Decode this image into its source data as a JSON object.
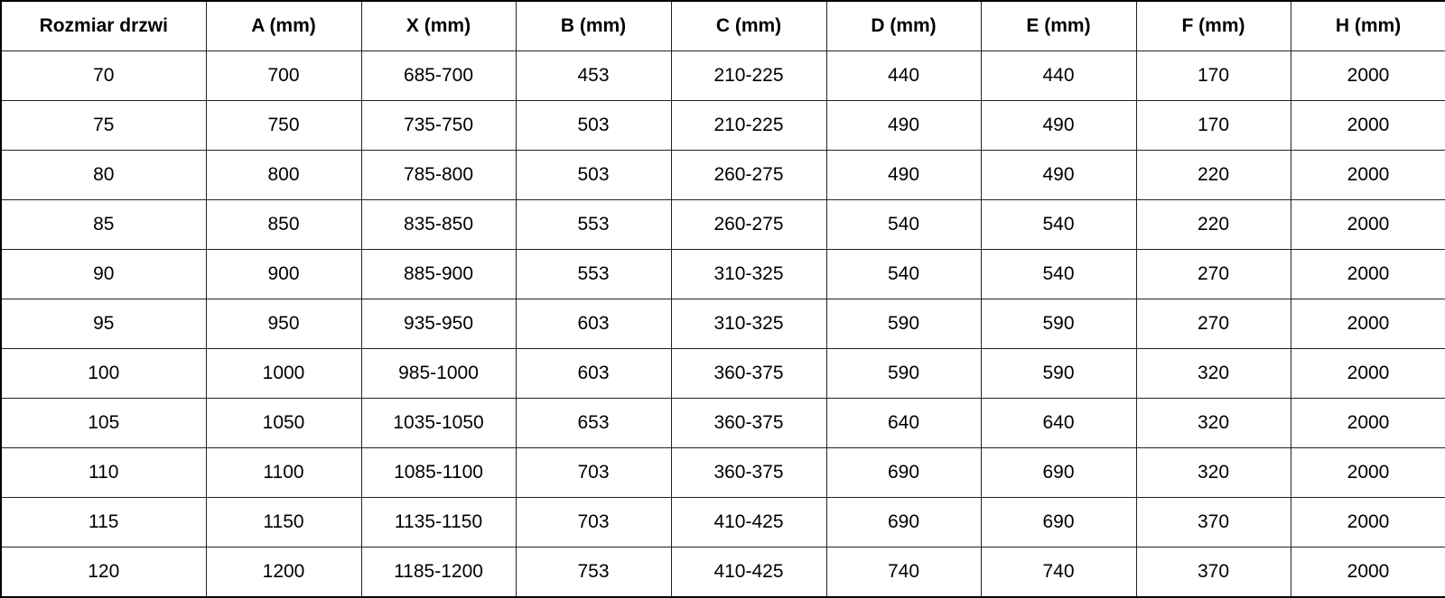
{
  "table": {
    "headers": [
      "Rozmiar drzwi",
      "A (mm)",
      "X (mm)",
      "B (mm)",
      "C (mm)",
      "D (mm)",
      "E (mm)",
      "F (mm)",
      "H (mm)"
    ],
    "rows": [
      [
        "70",
        "700",
        "685-700",
        "453",
        "210-225",
        "440",
        "440",
        "170",
        "2000"
      ],
      [
        "75",
        "750",
        "735-750",
        "503",
        "210-225",
        "490",
        "490",
        "170",
        "2000"
      ],
      [
        "80",
        "800",
        "785-800",
        "503",
        "260-275",
        "490",
        "490",
        "220",
        "2000"
      ],
      [
        "85",
        "850",
        "835-850",
        "553",
        "260-275",
        "540",
        "540",
        "220",
        "2000"
      ],
      [
        "90",
        "900",
        "885-900",
        "553",
        "310-325",
        "540",
        "540",
        "270",
        "2000"
      ],
      [
        "95",
        "950",
        "935-950",
        "603",
        "310-325",
        "590",
        "590",
        "270",
        "2000"
      ],
      [
        "100",
        "1000",
        "985-1000",
        "603",
        "360-375",
        "590",
        "590",
        "320",
        "2000"
      ],
      [
        "105",
        "1050",
        "1035-1050",
        "653",
        "360-375",
        "640",
        "640",
        "320",
        "2000"
      ],
      [
        "110",
        "1100",
        "1085-1100",
        "703",
        "360-375",
        "690",
        "690",
        "320",
        "2000"
      ],
      [
        "115",
        "1150",
        "1135-1150",
        "703",
        "410-425",
        "690",
        "690",
        "370",
        "2000"
      ],
      [
        "120",
        "1200",
        "1185-1200",
        "753",
        "410-425",
        "740",
        "740",
        "370",
        "2000"
      ]
    ]
  }
}
